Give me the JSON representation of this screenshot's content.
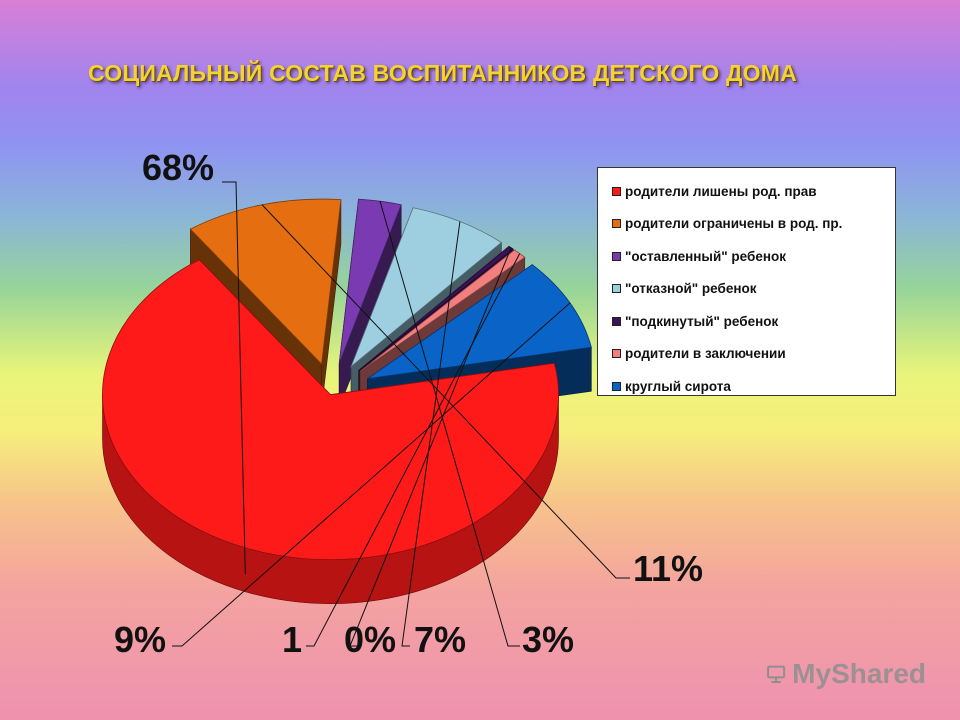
{
  "title": "СОЦИАЛЬНЫЙ СОСТАВ ВОСПИТАННИКОВ ДЕТСКОГО ДОМА",
  "chart_data": {
    "type": "pie",
    "style": "3d-exploded",
    "title": "СОЦИАЛЬНЫЙ СОСТАВ ВОСПИТАННИКОВ ДЕТСКОГО ДОМА",
    "categories": [
      "родители лишены род. прав",
      "родители ограничены в род. пр.",
      "\"оставленный\" ребенок",
      "\"отказной\" ребенок",
      "\"подкинутый\" ребенок",
      "родители в заключении",
      "круглый сирота"
    ],
    "values": [
      68,
      11,
      3,
      7,
      0,
      1,
      9
    ],
    "data_labels": [
      "68%",
      "11%",
      "3%",
      "7%",
      "0%",
      "1",
      "9%"
    ],
    "colors": [
      "#ff1a1a",
      "#e46e10",
      "#7a3ab2",
      "#9ecfe0",
      "#3a1255",
      "#f27e7e",
      "#0a64c8"
    ],
    "legend_position": "right"
  },
  "watermark": "MyShared"
}
